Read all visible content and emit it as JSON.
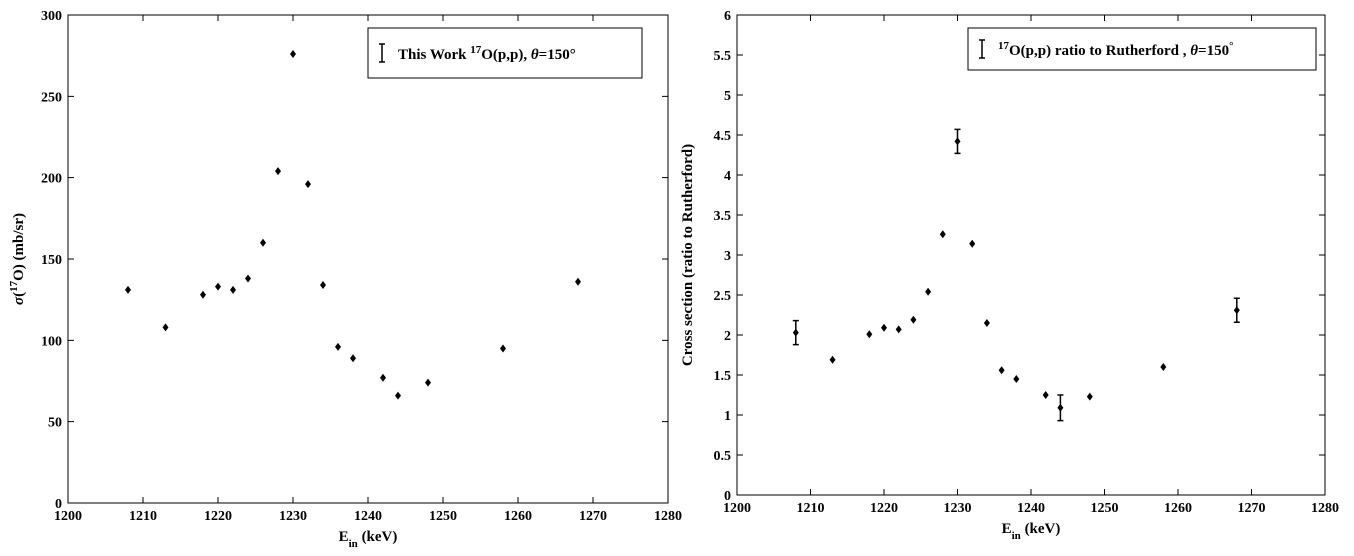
{
  "chart_data": [
    {
      "type": "scatter",
      "xlabel": [
        {
          "text": "E"
        },
        {
          "text": "in",
          "shift": "sub"
        },
        {
          "text": " (keV)"
        }
      ],
      "ylabel": [
        {
          "text": "σ",
          "italic": true
        },
        {
          "text": "("
        },
        {
          "text": "17",
          "shift": "super"
        },
        {
          "text": "O) (mb/sr)"
        }
      ],
      "xlim": [
        1200,
        1280
      ],
      "xticks": [
        1200,
        1210,
        1220,
        1230,
        1240,
        1250,
        1260,
        1270,
        1280
      ],
      "ylim": [
        0,
        300
      ],
      "yticks": [
        0,
        50,
        100,
        150,
        200,
        250,
        300
      ],
      "series": [
        {
          "name": [
            {
              "text": "This Work "
            },
            {
              "text": "17",
              "shift": "super"
            },
            {
              "text": "O(p,p), "
            },
            {
              "text": "θ",
              "italic": true
            },
            {
              "text": "=150°"
            }
          ],
          "color": "#000000",
          "x": [
            1208,
            1213,
            1218,
            1220,
            1222,
            1224,
            1226,
            1228,
            1230,
            1232,
            1234,
            1236,
            1238,
            1242,
            1244,
            1248,
            1258,
            1268
          ],
          "values": [
            131,
            108,
            128,
            133,
            131,
            138,
            160,
            204,
            276,
            196,
            134,
            96,
            89,
            77,
            66,
            74,
            95,
            136
          ]
        }
      ]
    },
    {
      "type": "scatter",
      "xlabel": [
        {
          "text": "E"
        },
        {
          "text": "in",
          "shift": "sub"
        },
        {
          "text": " (keV)"
        }
      ],
      "ylabel": [
        {
          "text": "Cross section (ratio to Rutherford)"
        }
      ],
      "xlim": [
        1200,
        1280
      ],
      "xticks": [
        1200,
        1210,
        1220,
        1230,
        1240,
        1250,
        1260,
        1270,
        1280
      ],
      "ylim": [
        0,
        6
      ],
      "yticks": [
        0,
        0.5,
        1,
        1.5,
        2,
        2.5,
        3,
        3.5,
        4,
        4.5,
        5,
        5.5,
        6
      ],
      "series": [
        {
          "name": [
            {
              "text": "17",
              "shift": "super"
            },
            {
              "text": "O(p,p) ratio to Rutherford , "
            },
            {
              "text": "θ",
              "italic": true
            },
            {
              "text": "=150"
            },
            {
              "text": "°",
              "shift": "super"
            }
          ],
          "color": "#000000",
          "x": [
            1208,
            1213,
            1218,
            1220,
            1222,
            1224,
            1226,
            1228,
            1230,
            1232,
            1234,
            1236,
            1238,
            1242,
            1244,
            1248,
            1258,
            1268
          ],
          "values": [
            2.03,
            1.69,
            2.01,
            2.09,
            2.07,
            2.19,
            2.54,
            3.26,
            4.42,
            3.14,
            2.15,
            1.56,
            1.45,
            1.25,
            1.09,
            1.23,
            1.6,
            2.31
          ],
          "errors": [
            0.15,
            null,
            null,
            null,
            null,
            null,
            null,
            null,
            0.15,
            null,
            null,
            null,
            null,
            null,
            0.16,
            null,
            null,
            0.15
          ]
        }
      ]
    }
  ]
}
